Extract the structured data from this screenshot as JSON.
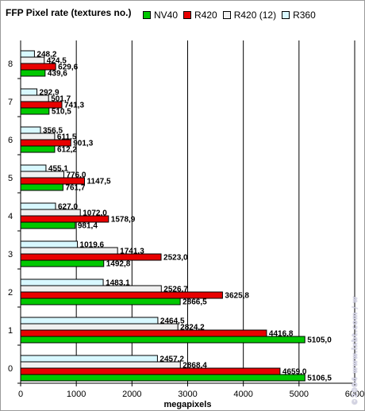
{
  "title": "FFP Pixel rate (textures no.)",
  "watermark": "©2004 www.ixbt.com / www.digit-life.com",
  "chart_data": {
    "type": "bar",
    "orientation": "horizontal",
    "title": "FFP Pixel rate (textures no.)",
    "xlabel": "megapixels",
    "ylabel": "",
    "xlim": [
      0,
      6000
    ],
    "xticks": [
      "0",
      "1000",
      "2000",
      "3000",
      "4000",
      "5000",
      "6000"
    ],
    "grid": true,
    "legend_placement": "top",
    "categories": [
      "0",
      "1",
      "2",
      "3",
      "4",
      "5",
      "6",
      "7",
      "8"
    ],
    "series": [
      {
        "name": "NV40",
        "color": "#00c800",
        "values": [
          5106.5,
          5105.0,
          2866.5,
          1492.8,
          981.4,
          761.7,
          612.2,
          510.5,
          439.6
        ],
        "labels": [
          "5106,5",
          "5105,0",
          "2866,5",
          "1492,8",
          "981,4",
          "761,7",
          "612,2",
          "510,5",
          "439,6"
        ]
      },
      {
        "name": "R420",
        "color": "#e80000",
        "values": [
          4659.0,
          4416.8,
          3625.8,
          2523.0,
          1578.9,
          1147.5,
          901.3,
          741.3,
          629.6
        ],
        "labels": [
          "4659,0",
          "4416,8",
          "3625,8",
          "2523,0",
          "1578,9",
          "1147,5",
          "901,3",
          "741,3",
          "629,6"
        ]
      },
      {
        "name": "R420 (12)",
        "color": "#f0f0f0",
        "values": [
          2868.4,
          2824.2,
          2526.7,
          1741.3,
          1072.0,
          776.0,
          611.5,
          501.7,
          424.5
        ],
        "labels": [
          "2868,4",
          "2824,2",
          "2526,7",
          "1741,3",
          "1072,0",
          "776,0",
          "611,5",
          "501,7",
          "424,5"
        ]
      },
      {
        "name": "R360",
        "color": "#d8f8ff",
        "values": [
          2457.2,
          2464.5,
          1483.1,
          1019.6,
          627.0,
          455.1,
          356.5,
          292.9,
          248.2
        ],
        "labels": [
          "2457,2",
          "2464,5",
          "1483,1",
          "1019,6",
          "627,0",
          "455,1",
          "356,5",
          "292,9",
          "248,2"
        ]
      }
    ]
  }
}
